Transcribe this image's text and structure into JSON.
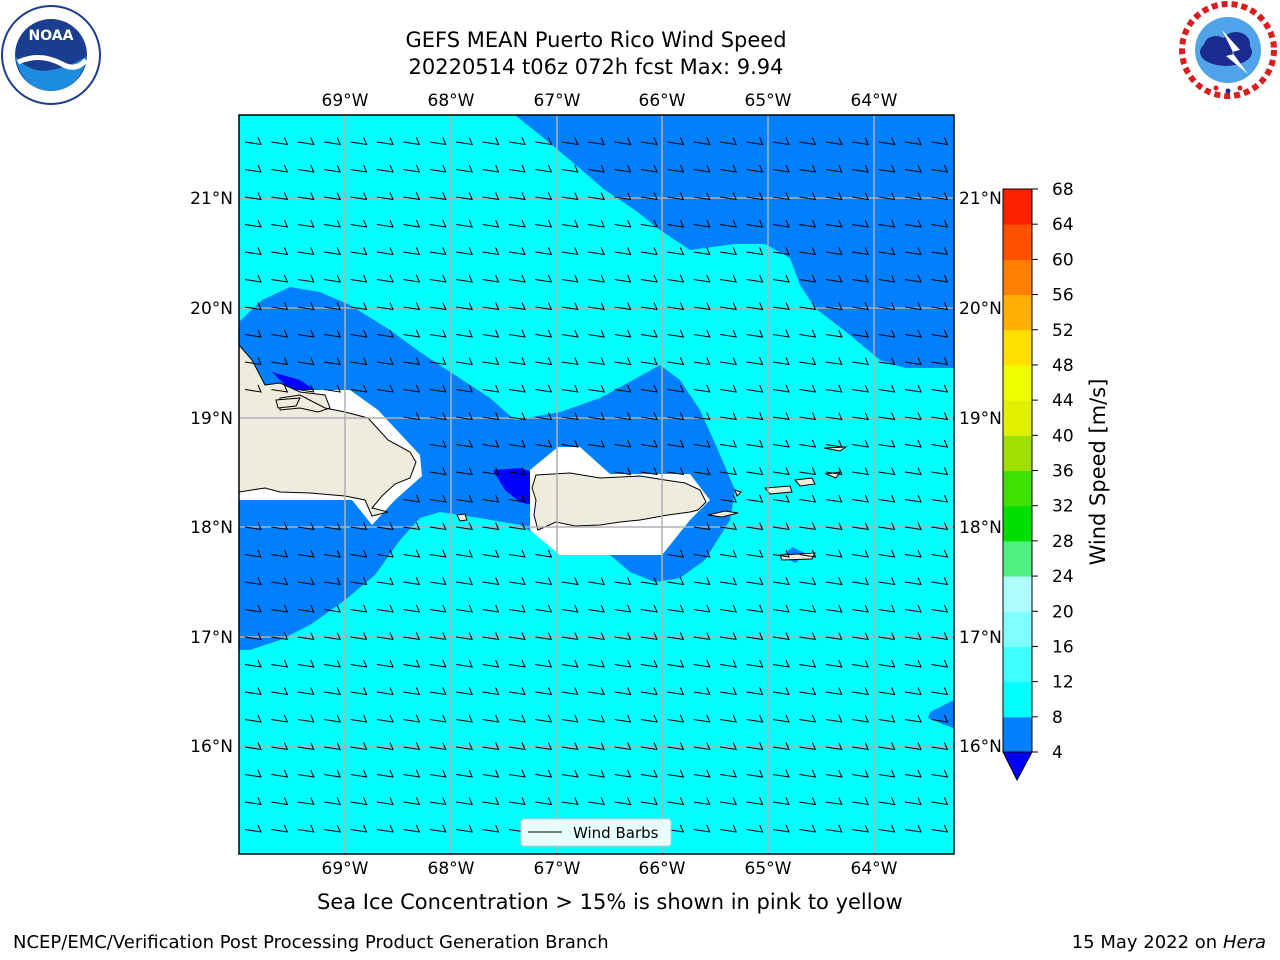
{
  "header": {
    "title_line1": "GEFS MEAN Puerto Rico Wind Speed",
    "title_line2": "20220514 t06z 072h fcst   Max: 9.94"
  },
  "logos": {
    "left": {
      "name": "NOAA",
      "ring_text": "NATIONAL OCEANIC AND ATMOSPHERIC ADMINISTRATION · U.S. DEPARTMENT OF COMMERCE"
    },
    "right": {
      "ring_text": "NATIONAL WEATHER SERVICE"
    }
  },
  "map": {
    "lon_labels": [
      "69°W",
      "68°W",
      "67°W",
      "66°W",
      "65°W",
      "64°W"
    ],
    "lat_labels": [
      "21°N",
      "20°N",
      "19°N",
      "18°N",
      "17°N",
      "16°N"
    ],
    "legend_label": "Wind Barbs",
    "colors": {
      "ocean_light": "#00ffff",
      "ocean_mid": "#0080ff",
      "ocean_dark": "#0000ff",
      "land": "#eeecdc",
      "mask": "#ffffff"
    }
  },
  "colorbar": {
    "label": "Wind Speed [m/s]",
    "ticks": [
      "4",
      "8",
      "12",
      "16",
      "20",
      "24",
      "28",
      "32",
      "36",
      "40",
      "44",
      "48",
      "52",
      "56",
      "60",
      "64",
      "68"
    ],
    "colors": [
      "#0080ff",
      "#00ffff",
      "#40ffff",
      "#80ffff",
      "#b0ffff",
      "#50f080",
      "#00e000",
      "#40e000",
      "#a0e000",
      "#e0f000",
      "#f0ff00",
      "#ffe000",
      "#ffb000",
      "#ff8000",
      "#ff5000",
      "#ff2000",
      "#ff0000"
    ],
    "under_color": "#0000ff"
  },
  "caption": "Sea Ice Concentration > 15% is shown in pink to yellow",
  "footer": {
    "left": "NCEP/EMC/Verification Post Processing Product Generation Branch",
    "right_date": "15 May 2022 on",
    "right_machine": "Hera"
  }
}
